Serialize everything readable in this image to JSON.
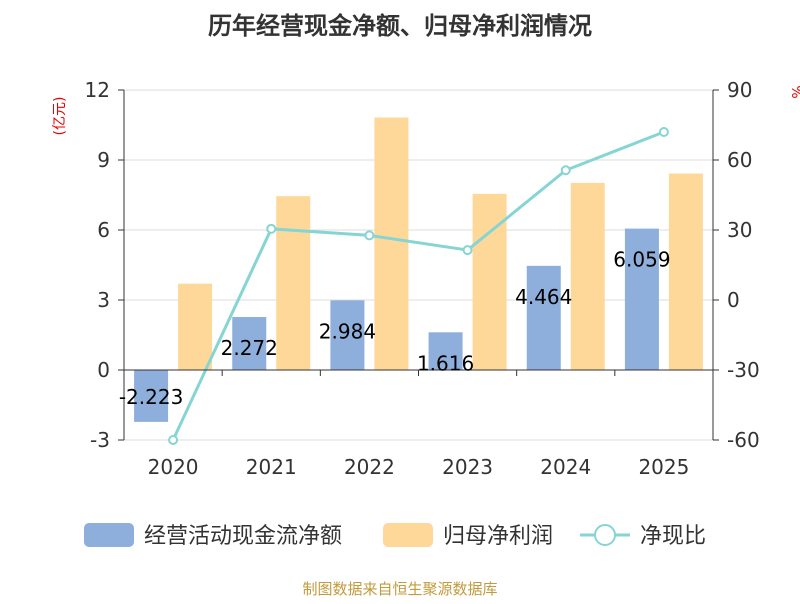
{
  "chart_data": {
    "type": "bar",
    "title": "历年经营现金净额、归母净利润情况",
    "categories": [
      "2020",
      "2021",
      "2022",
      "2023",
      "2024",
      "2025"
    ],
    "series": [
      {
        "name": "经营活动现金流净额",
        "type": "bar",
        "axis": "left",
        "values": [
          -2.223,
          2.272,
          2.984,
          1.616,
          4.464,
          6.059
        ],
        "color": "#8EAEDC"
      },
      {
        "name": "归母净利润",
        "type": "bar",
        "axis": "left",
        "values": [
          3.7,
          7.45,
          10.82,
          7.55,
          8.02,
          8.42
        ],
        "color": "#FED899"
      },
      {
        "name": "净现比",
        "type": "line",
        "axis": "right",
        "values": [
          -60,
          30.5,
          27.7,
          21.4,
          55.6,
          72.0
        ],
        "color": "#86D4D4"
      }
    ],
    "data_labels": [
      "-2.223",
      "2.272",
      "2.984",
      "1.616",
      "4.464",
      "6.059"
    ],
    "y_left": {
      "label": "(亿元)",
      "ticks": [
        "12",
        "9",
        "6",
        "3",
        "0",
        "-3"
      ],
      "ylim": [
        -3,
        12
      ]
    },
    "y_right": {
      "label": "%",
      "ticks": [
        "90",
        "60",
        "30",
        "0",
        "-30",
        "-60"
      ],
      "ylim": [
        -60,
        90
      ]
    },
    "legend": [
      "经营活动现金流净额",
      "归母净利润",
      "净现比"
    ],
    "source": "制图数据来自恒生聚源数据库",
    "colors": {
      "title": "#333333",
      "axis_label": "#e60000",
      "source": "#c39a3c",
      "grid": "#dddddd",
      "axis": "#333333"
    }
  }
}
